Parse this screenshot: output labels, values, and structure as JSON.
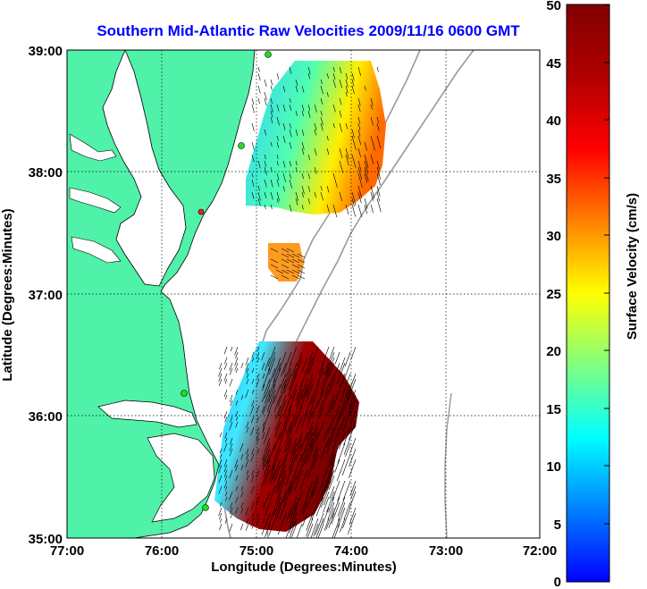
{
  "title": "Southern Mid-Atlantic Raw Velocities 2009/11/16 0600 GMT",
  "xlabel": "Longitude (Degrees:Minutes)",
  "ylabel": "Latitude (Degrees:Minutes)",
  "colorbar_label": "Surface Velocity (cm/s)",
  "x_ticks": [
    "77:00",
    "76:00",
    "75:00",
    "74:00",
    "73:00",
    "72:00"
  ],
  "y_ticks": [
    "39:00",
    "38:00",
    "37:00",
    "36:00",
    "35:00"
  ],
  "colorbar_ticks": [
    "50",
    "45",
    "40",
    "35",
    "30",
    "25",
    "20",
    "15",
    "10",
    "5",
    "0"
  ],
  "colors": {
    "land": "#4ff2a8",
    "ocean": "#ffffff",
    "title": "#0000ff",
    "isobath": "#9a9a9a",
    "station_green": "#22dd22",
    "station_red": "#ee2222"
  },
  "map": {
    "lon_range": [
      -77,
      -72
    ],
    "lat_range": [
      35,
      39
    ],
    "grid": true
  },
  "colorbar": {
    "range": [
      0,
      50
    ],
    "colormap": "jet"
  }
}
